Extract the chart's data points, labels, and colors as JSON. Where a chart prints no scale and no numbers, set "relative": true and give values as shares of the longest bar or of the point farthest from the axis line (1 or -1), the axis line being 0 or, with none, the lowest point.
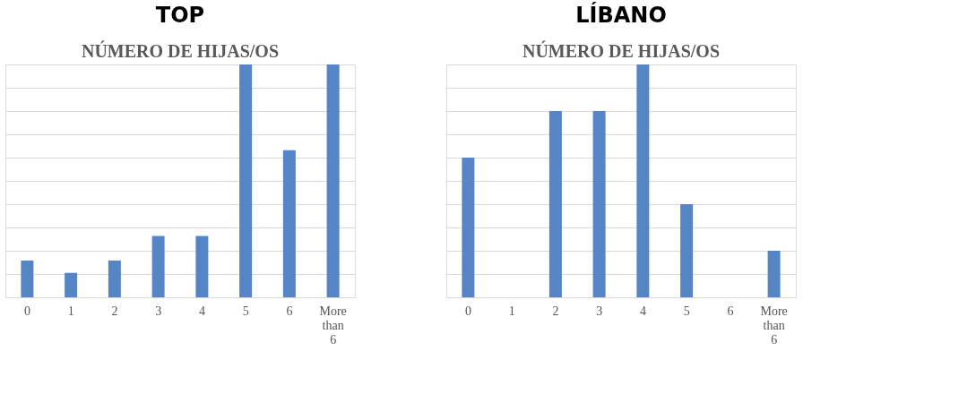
{
  "chart_data": [
    {
      "type": "bar",
      "title": "TOP",
      "subtitle": "NÚMERO DE HIJAS/OS",
      "categories": [
        "0",
        "1",
        "2",
        "3",
        "4",
        "5",
        "6",
        "More than 6"
      ],
      "values": [
        0.158,
        0.105,
        0.158,
        0.263,
        0.263,
        1,
        0.632,
        1
      ],
      "color": "#5585c5",
      "relative": true,
      "grid": "y"
    },
    {
      "type": "bar",
      "title": "LÍBANO",
      "subtitle": "NÚMERO DE HIJAS/OS",
      "categories": [
        "0",
        "1",
        "2",
        "3",
        "4",
        "5",
        "6",
        "More than 6"
      ],
      "values": [
        0.6,
        0,
        0.8,
        0.8,
        1,
        0.4,
        0,
        0.2
      ],
      "color": "#5585c5",
      "relative": true,
      "grid": "y"
    }
  ]
}
